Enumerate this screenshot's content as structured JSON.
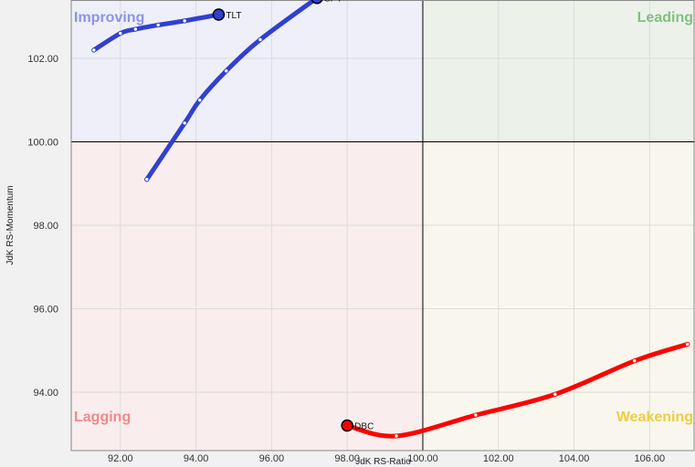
{
  "chart_data": {
    "type": "line",
    "xlabel": "JdK RS-Ratio",
    "ylabel": "JdK RS-Momentum",
    "xlim": [
      90.7,
      107.2
    ],
    "ylim": [
      92.6,
      103.4
    ],
    "center": [
      100,
      100
    ],
    "x_ticks": [
      "92.00",
      "94.00",
      "96.00",
      "98.00",
      "100.00",
      "102.00",
      "104.00",
      "106.00"
    ],
    "y_ticks": [
      "94.00",
      "96.00",
      "98.00",
      "100.00",
      "102.00"
    ],
    "grid": true,
    "quadrants": [
      {
        "name": "Improving",
        "position": "top-left",
        "fill": "#eeeff8",
        "label_color": "#8a94e6"
      },
      {
        "name": "Leading",
        "position": "top-right",
        "fill": "#ecf2ea",
        "label_color": "#80c080"
      },
      {
        "name": "Lagging",
        "position": "bottom-left",
        "fill": "#f9eded",
        "label_color": "#f08a8a"
      },
      {
        "name": "Weakening",
        "position": "bottom-right",
        "fill": "#f9f7ed",
        "label_color": "#f0cc40"
      }
    ],
    "series": [
      {
        "name": "TLT",
        "color": "#3040d0",
        "x": [
          91.3,
          92.0,
          92.4,
          93.0,
          93.7,
          94.6
        ],
        "y": [
          102.2,
          102.6,
          102.7,
          102.8,
          102.9,
          103.05
        ]
      },
      {
        "name": "SPY",
        "color": "#3040d0",
        "x": [
          92.7,
          93.7,
          94.1,
          94.8,
          95.7,
          97.2
        ],
        "y": [
          99.1,
          100.45,
          101.0,
          101.7,
          102.45,
          103.45
        ]
      },
      {
        "name": "DBC",
        "color": "#ff0000",
        "x": [
          107.0,
          105.6,
          103.5,
          101.4,
          99.3,
          98.0
        ],
        "y": [
          95.15,
          94.75,
          93.95,
          93.45,
          92.95,
          93.2
        ]
      }
    ]
  }
}
